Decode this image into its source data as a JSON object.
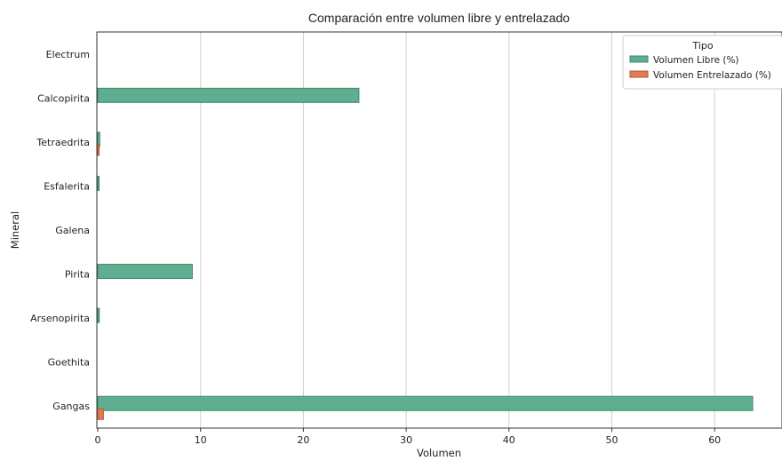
{
  "colors": {
    "libre": "#5fae8f",
    "libre_edge": "#3f8a6d",
    "entrelazado": "#e07b54",
    "entrelazado_edge": "#b85a36"
  },
  "chart_data": {
    "type": "bar",
    "orientation": "horizontal",
    "title": "Comparación entre volumen libre y entrelazado",
    "xlabel": "Volumen",
    "ylabel": "Mineral",
    "categories": [
      "Electrum",
      "Calcopirita",
      "Tetraedrita",
      "Esfalerita",
      "Galena",
      "Pirita",
      "Arsenopirita",
      "Goethita",
      "Gangas"
    ],
    "series": [
      {
        "name": "Volumen Libre (%)",
        "values": [
          0.0,
          25.4,
          0.2,
          0.1,
          0.0,
          9.2,
          0.15,
          0.0,
          63.7
        ]
      },
      {
        "name": "Volumen Entrelazado (%)",
        "values": [
          0.0,
          0.0,
          0.1,
          0.0,
          0.0,
          0.0,
          0.0,
          0.0,
          0.55
        ]
      }
    ],
    "xlim": [
      0,
      65.5
    ],
    "xticks": [
      0,
      10,
      20,
      30,
      40,
      50,
      60
    ],
    "grid": "x",
    "legend": {
      "title": "Tipo",
      "placement": "top-right"
    }
  }
}
